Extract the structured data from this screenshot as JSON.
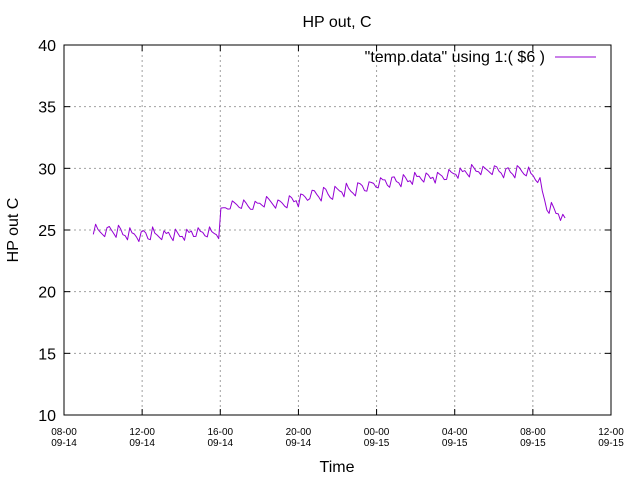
{
  "chart_data": {
    "type": "line",
    "title": "HP out, C",
    "xlabel": "Time",
    "ylabel": "HP out C",
    "ylim": [
      10,
      40
    ],
    "yticks": [
      "10",
      "15",
      "20",
      "25",
      "30",
      "35",
      "40"
    ],
    "xlim": [
      "2014-09-14 08:00",
      "2014-09-15 12:00"
    ],
    "xticks": [
      {
        "t": "2014-09-14 08:00",
        "line1": "08-00",
        "line2": "09-14"
      },
      {
        "t": "2014-09-14 12:00",
        "line1": "12-00",
        "line2": "09-14"
      },
      {
        "t": "2014-09-14 16:00",
        "line1": "16-00",
        "line2": "09-14"
      },
      {
        "t": "2014-09-14 20:00",
        "line1": "20-00",
        "line2": "09-14"
      },
      {
        "t": "2014-09-15 00:00",
        "line1": "00-00",
        "line2": "09-15"
      },
      {
        "t": "2014-09-15 04:00",
        "line1": "04-00",
        "line2": "09-15"
      },
      {
        "t": "2014-09-15 08:00",
        "line1": "08-00",
        "line2": "09-15"
      },
      {
        "t": "2014-09-15 12:00",
        "line1": "12-00",
        "line2": "09-15"
      }
    ],
    "grid": true,
    "legend_position": "top-right",
    "series": [
      {
        "name": "\"temp.data\" using 1:( $6 )",
        "color": "#9400d3",
        "x": [
          "2014-09-14 09:30",
          "2014-09-14 10:00",
          "2014-09-14 10:30",
          "2014-09-14 11:00",
          "2014-09-14 11:30",
          "2014-09-14 12:00",
          "2014-09-14 12:30",
          "2014-09-14 13:00",
          "2014-09-14 13:30",
          "2014-09-14 14:00",
          "2014-09-14 14:30",
          "2014-09-14 15:00",
          "2014-09-14 15:30",
          "2014-09-14 15:55",
          "2014-09-14 16:00",
          "2014-09-14 16:30",
          "2014-09-14 17:00",
          "2014-09-14 17:30",
          "2014-09-14 18:00",
          "2014-09-14 18:30",
          "2014-09-14 19:00",
          "2014-09-14 19:30",
          "2014-09-14 20:00",
          "2014-09-14 20:30",
          "2014-09-14 21:00",
          "2014-09-14 21:30",
          "2014-09-14 22:00",
          "2014-09-14 22:30",
          "2014-09-14 23:00",
          "2014-09-14 23:30",
          "2014-09-15 00:00",
          "2014-09-15 00:30",
          "2014-09-15 01:00",
          "2014-09-15 01:30",
          "2014-09-15 02:00",
          "2014-09-15 02:30",
          "2014-09-15 03:00",
          "2014-09-15 03:30",
          "2014-09-15 04:00",
          "2014-09-15 04:30",
          "2014-09-15 05:00",
          "2014-09-15 05:30",
          "2014-09-15 06:00",
          "2014-09-15 06:30",
          "2014-09-15 07:00",
          "2014-09-15 07:30",
          "2014-09-15 08:00",
          "2014-09-15 08:20",
          "2014-09-15 08:40",
          "2014-09-15 09:00",
          "2014-09-15 09:30",
          "2014-09-15 09:40"
        ],
        "y": [
          25.1,
          24.9,
          25.0,
          24.8,
          24.7,
          24.6,
          24.7,
          24.6,
          24.7,
          24.6,
          24.8,
          24.8,
          24.8,
          24.9,
          26.5,
          27.0,
          27.1,
          27.0,
          27.1,
          27.2,
          27.2,
          27.3,
          27.5,
          27.8,
          27.9,
          28.0,
          28.1,
          28.3,
          28.4,
          28.6,
          28.9,
          29.0,
          29.1,
          29.1,
          29.2,
          29.3,
          29.4,
          29.5,
          29.6,
          29.7,
          29.8,
          29.8,
          29.8,
          29.7,
          29.7,
          29.8,
          29.5,
          29.0,
          27.0,
          26.8,
          26.1,
          25.8
        ],
        "oscillation_amplitude": 0.9
      }
    ]
  }
}
